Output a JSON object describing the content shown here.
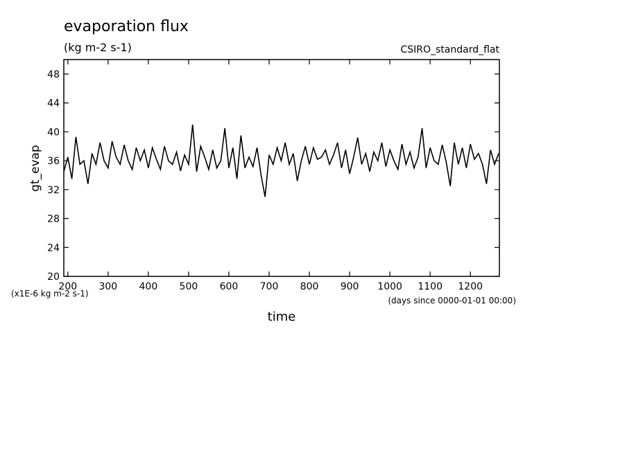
{
  "chart_data": {
    "type": "line",
    "title": "evaporation flux",
    "subtitle": "(kg m-2 s-1)",
    "annotation": "CSIRO_standard_flat",
    "ylabel": "gt_evap",
    "yunits": "(x1E-6 kg m-2 s-1)",
    "xlabel": "time",
    "xunits": "(days since 0000-01-01 00:00)",
    "xlim": [
      190,
      1272
    ],
    "ylim": [
      20,
      50
    ],
    "xticks": [
      200,
      300,
      400,
      500,
      600,
      700,
      800,
      900,
      1000,
      1100,
      1200
    ],
    "yticks": [
      20,
      24,
      28,
      32,
      36,
      40,
      44,
      48
    ],
    "x": [
      190,
      200,
      210,
      220,
      230,
      240,
      250,
      260,
      270,
      280,
      290,
      300,
      310,
      320,
      330,
      340,
      350,
      360,
      370,
      380,
      390,
      400,
      410,
      420,
      430,
      440,
      450,
      460,
      470,
      480,
      490,
      500,
      510,
      520,
      530,
      540,
      550,
      560,
      570,
      580,
      590,
      600,
      610,
      620,
      630,
      640,
      650,
      660,
      670,
      680,
      690,
      700,
      710,
      720,
      730,
      740,
      750,
      760,
      770,
      780,
      790,
      800,
      810,
      820,
      830,
      840,
      850,
      860,
      870,
      880,
      890,
      900,
      910,
      920,
      930,
      940,
      950,
      960,
      970,
      980,
      990,
      1000,
      1010,
      1020,
      1030,
      1040,
      1050,
      1060,
      1070,
      1080,
      1090,
      1100,
      1110,
      1120,
      1130,
      1140,
      1150,
      1160,
      1170,
      1180,
      1190,
      1200,
      1210,
      1220,
      1230,
      1240,
      1250,
      1260,
      1270
    ],
    "series": [
      {
        "color": "#000000",
        "values": [
          34.5,
          36.5,
          33.5,
          39.3,
          35.5,
          36,
          32.8,
          37,
          35.5,
          38.5,
          36,
          35,
          38.7,
          36.5,
          35.5,
          38.2,
          36,
          34.8,
          37.8,
          36,
          37.5,
          35,
          37.8,
          36.2,
          34.8,
          38,
          36,
          35.5,
          37.2,
          34.6,
          36.8,
          35.5,
          41,
          34.5,
          38,
          36.5,
          34.8,
          37.5,
          35,
          36,
          40.5,
          35,
          37.8,
          33.5,
          39.5,
          35,
          36.5,
          35.2,
          37.8,
          34,
          31,
          36.8,
          35.5,
          37.8,
          36,
          38.5,
          35.5,
          37,
          33.2,
          36,
          38,
          35.5,
          37.8,
          36.2,
          36.5,
          37.5,
          35.5,
          36.8,
          38.5,
          35,
          37.5,
          34.2,
          36.5,
          39.2,
          35.5,
          37,
          34.5,
          37.2,
          36,
          38.5,
          35.2,
          37.5,
          36,
          34.8,
          38.3,
          35.5,
          37.2,
          35,
          36.5,
          40.5,
          35,
          37.8,
          36,
          35.5,
          38.2,
          35.8,
          32.5,
          38.5,
          35.5,
          37.8,
          35,
          38.3,
          36.2,
          37,
          35.5,
          32.8,
          37.5,
          35.5,
          37
        ]
      }
    ]
  }
}
